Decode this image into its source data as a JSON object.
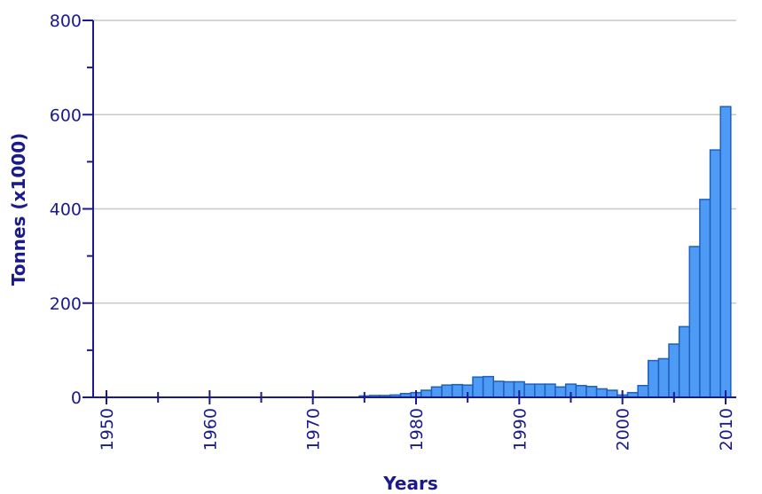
{
  "chart_data": {
    "type": "bar",
    "title": "",
    "xlabel": "Years",
    "ylabel": "Tonnes (x1000)",
    "xlim": [
      1950,
      2010
    ],
    "ylim": [
      0,
      800
    ],
    "x_ticks": [
      "1950",
      "1960",
      "1970",
      "1980",
      "1990",
      "2000",
      "2010"
    ],
    "y_ticks": [
      "0",
      "200",
      "400",
      "600",
      "800"
    ],
    "grid": true,
    "colors": {
      "bar_fill": "#4d9bf5",
      "bar_stroke": "#1f5fbf",
      "axis_text": "#1a1a8c"
    },
    "categories": [
      1950,
      1951,
      1952,
      1953,
      1954,
      1955,
      1956,
      1957,
      1958,
      1959,
      1960,
      1961,
      1962,
      1963,
      1964,
      1965,
      1966,
      1967,
      1968,
      1969,
      1970,
      1971,
      1972,
      1973,
      1974,
      1975,
      1976,
      1977,
      1978,
      1979,
      1980,
      1981,
      1982,
      1983,
      1984,
      1985,
      1986,
      1987,
      1988,
      1989,
      1990,
      1991,
      1992,
      1993,
      1994,
      1995,
      1996,
      1997,
      1998,
      1999,
      2000,
      2001,
      2002,
      2003,
      2004,
      2005,
      2006,
      2007,
      2008,
      2009,
      2010
    ],
    "values": [
      0,
      0,
      0,
      0,
      0,
      0,
      0,
      0,
      0,
      0,
      0,
      0,
      0,
      0,
      0,
      0,
      0,
      0,
      0,
      0,
      0,
      0,
      0,
      0,
      0,
      3,
      4,
      4,
      5,
      8,
      10,
      15,
      22,
      26,
      27,
      26,
      43,
      44,
      34,
      33,
      33,
      28,
      28,
      28,
      22,
      28,
      25,
      23,
      18,
      15,
      5,
      10,
      25,
      78,
      82,
      113,
      150,
      320,
      420,
      525,
      617
    ]
  }
}
